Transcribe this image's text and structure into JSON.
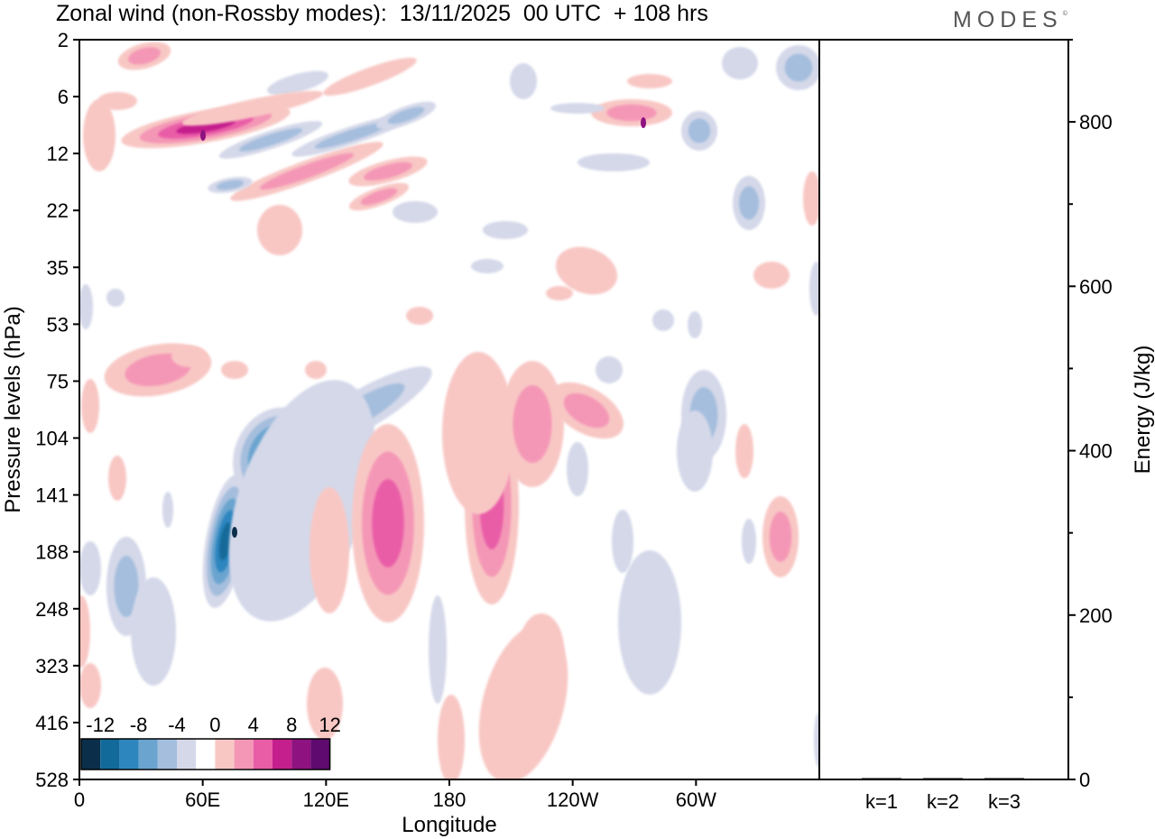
{
  "header": {
    "title": "Zonal wind (non-Rossby modes):  13/11/2025  00 UTC  + 108 hrs",
    "logo_text": "MODES",
    "logo_mark": "©"
  },
  "chart_data": [
    {
      "type": "heatmap",
      "title": "Zonal wind (non-Rossby modes):  13/11/2025  00 UTC  + 108 hrs",
      "xlabel": "Longitude",
      "ylabel": "Pressure levels (hPa)",
      "x_ticks": [
        "0",
        "60E",
        "120E",
        "180",
        "120W",
        "60W"
      ],
      "x_tick_degrees": [
        0,
        60,
        120,
        180,
        240,
        300
      ],
      "xlim": [
        0,
        360
      ],
      "y_ticks": [
        "2",
        "6",
        "12",
        "22",
        "35",
        "53",
        "75",
        "104",
        "141",
        "188",
        "248",
        "323",
        "416",
        "528"
      ],
      "colorbar": {
        "labels": [
          "-12",
          "-8",
          "-4",
          "0",
          "4",
          "8",
          "12"
        ],
        "levels": [
          -14,
          -12,
          -10,
          -8,
          -6,
          -4,
          -2,
          2,
          4,
          6,
          8,
          10,
          12,
          14
        ],
        "colors": [
          "#0b2f4a",
          "#126a9a",
          "#2e86bf",
          "#6aa4cf",
          "#a5bedd",
          "#d4d8e9",
          "#ffffff",
          "#f8c7c4",
          "#f497b6",
          "#e95da7",
          "#c41f8c",
          "#8e1280",
          "#5e0a6e"
        ]
      },
      "features": [
        {
          "name": "negative jet core",
          "lon": 75,
          "level": "188",
          "value": -13
        },
        {
          "name": "negative band",
          "lon": 95,
          "level": "104",
          "value": -11
        },
        {
          "name": "upper positive core",
          "lon": 60,
          "level": "12",
          "value": 11
        },
        {
          "name": "positive core",
          "lon": 145,
          "level": "141",
          "value": 6
        },
        {
          "name": "positive core",
          "lon": 203,
          "level": "188",
          "value": 7
        },
        {
          "name": "positive core",
          "lon": 275,
          "level": "6",
          "value": 8
        },
        {
          "name": "positive core",
          "lon": 342,
          "level": "188",
          "value": 8
        }
      ]
    },
    {
      "type": "bar",
      "title": "",
      "xlabel": "",
      "ylabel": "Energy (J/kg)",
      "categories": [
        "k=1",
        "k=2",
        "k=3"
      ],
      "values": [
        0.8,
        0.6,
        0.5
      ],
      "ylim": [
        0,
        900
      ],
      "y_ticks": [
        "0",
        "200",
        "400",
        "600",
        "800"
      ],
      "y_tick_values": [
        0,
        200,
        400,
        600,
        800
      ]
    }
  ]
}
